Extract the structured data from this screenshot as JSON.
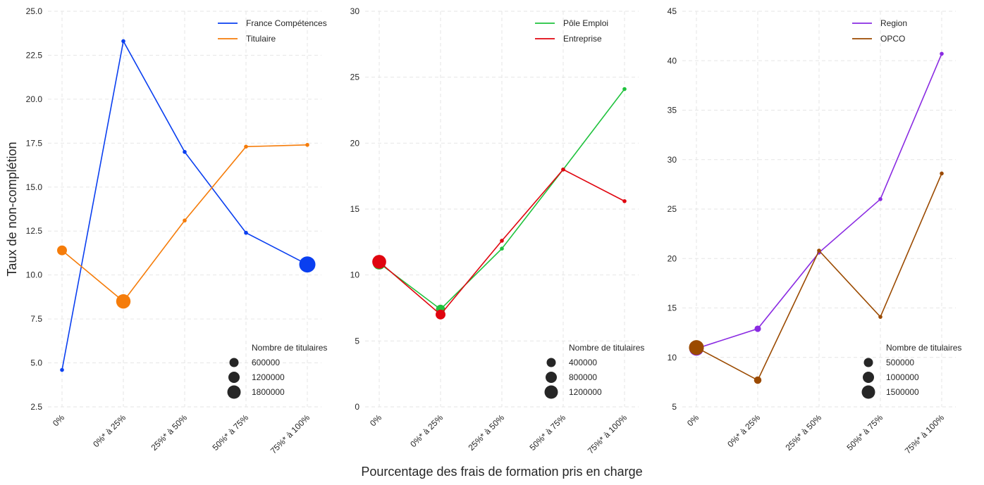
{
  "chart_data": {
    "type": "line",
    "ylabel": "Taux de non-complétion",
    "xlabel": "Pourcentage des frais de formation pris en charge",
    "categories": [
      "0%",
      "0%* à 25%",
      "25%* à 50%",
      "50%* à 75%",
      "75%* à 100%"
    ],
    "size_legend_title": "Nombre de titulaires",
    "panels": [
      {
        "ylim": [
          2.5,
          25.0
        ],
        "yticks": [
          "2.5",
          "5.0",
          "7.5",
          "10.0",
          "12.5",
          "15.0",
          "17.5",
          "20.0",
          "22.5",
          "25.0"
        ],
        "size_legend": [
          "600000",
          "1200000",
          "1800000"
        ],
        "series": [
          {
            "name": "France Compétences",
            "color": "#0a3ff0",
            "values": [
              4.6,
              23.3,
              17.0,
              12.4,
              10.6
            ],
            "titulaires": [
              5000,
              90000,
              20000,
              15000,
              1900000
            ]
          },
          {
            "name": "Titulaire",
            "color": "#f57c0a",
            "values": [
              11.4,
              8.5,
              13.1,
              17.3,
              17.4
            ],
            "titulaires": [
              700000,
              1500000,
              20000,
              10000,
              10000
            ]
          }
        ]
      },
      {
        "ylim": [
          0,
          30
        ],
        "yticks": [
          "0",
          "5",
          "10",
          "15",
          "20",
          "25",
          "30"
        ],
        "size_legend": [
          "400000",
          "800000",
          "1200000"
        ],
        "series": [
          {
            "name": "Pôle Emploi",
            "color": "#1fc23d",
            "values": [
              10.9,
              7.4,
              12.0,
              18.0,
              24.1
            ],
            "titulaires": [
              1200000,
              600000,
              40000,
              20000,
              20000
            ]
          },
          {
            "name": "Entreprise",
            "color": "#e0050f",
            "values": [
              11.0,
              7.0,
              12.6,
              18.0,
              15.6
            ],
            "titulaires": [
              1400000,
              700000,
              20000,
              10000,
              10000
            ]
          }
        ]
      },
      {
        "ylim": [
          5,
          45
        ],
        "yticks": [
          "5",
          "10",
          "15",
          "20",
          "25",
          "30",
          "35",
          "40",
          "45"
        ],
        "size_legend": [
          "500000",
          "1000000",
          "1500000"
        ],
        "series": [
          {
            "name": "Region",
            "color": "#8a2be2",
            "values": [
              10.9,
              12.9,
              20.6,
              26.0,
              40.7
            ],
            "titulaires": [
              1500000,
              300000,
              20000,
              20000,
              20000
            ]
          },
          {
            "name": "OPCO",
            "color": "#9b4a00",
            "values": [
              11.0,
              7.7,
              20.8,
              14.1,
              28.6
            ],
            "titulaires": [
              1600000,
              400000,
              20000,
              20000,
              20000
            ]
          }
        ]
      }
    ]
  }
}
